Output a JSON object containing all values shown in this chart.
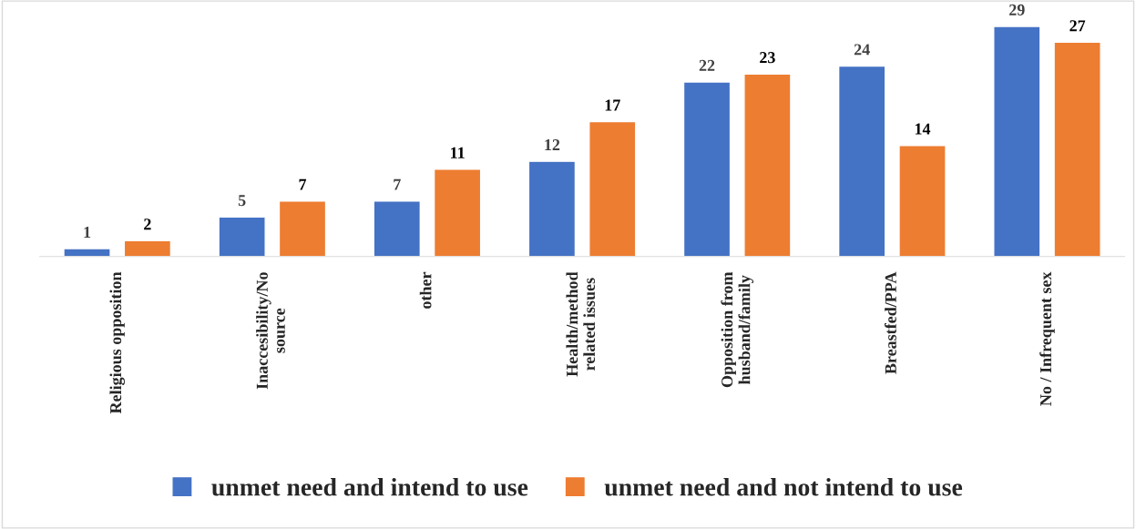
{
  "chart_data": {
    "type": "bar",
    "categories": [
      "Religious opposition",
      "Inaccesibility/No\nsource",
      "other",
      "Health/method\nrelated issues",
      "Opposition from\nhusband/family",
      "Breastfed/PPA",
      "No / Infrequent sex"
    ],
    "series": [
      {
        "name": "unmet need and intend to use",
        "color": "#4472c4",
        "values": [
          1,
          5,
          7,
          12,
          22,
          24,
          29
        ]
      },
      {
        "name": "unmet need and not intend to use",
        "color": "#ed7d31",
        "values": [
          2,
          7,
          11,
          17,
          23,
          14,
          27
        ]
      }
    ],
    "data_labels": true,
    "legend": "bottom",
    "grid": false
  }
}
